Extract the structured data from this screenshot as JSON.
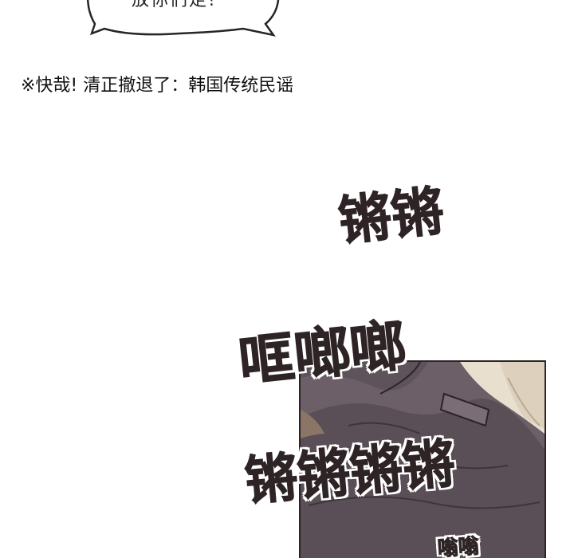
{
  "bubble": {
    "text": "放你们走!"
  },
  "footnote": {
    "text": "※快哉! 清正撤退了：韩国传统民谣"
  },
  "sound_effects": {
    "sfx_1": "锵锵",
    "sfx_2": "哐啷啷",
    "sfx_3": "锵锵锵锵",
    "sfx_4": "嗡嗡"
  },
  "colors": {
    "sfx_ink": "#2e2426",
    "panel_fabric": "#6c5f68",
    "panel_skin": "#e9dfcf"
  }
}
